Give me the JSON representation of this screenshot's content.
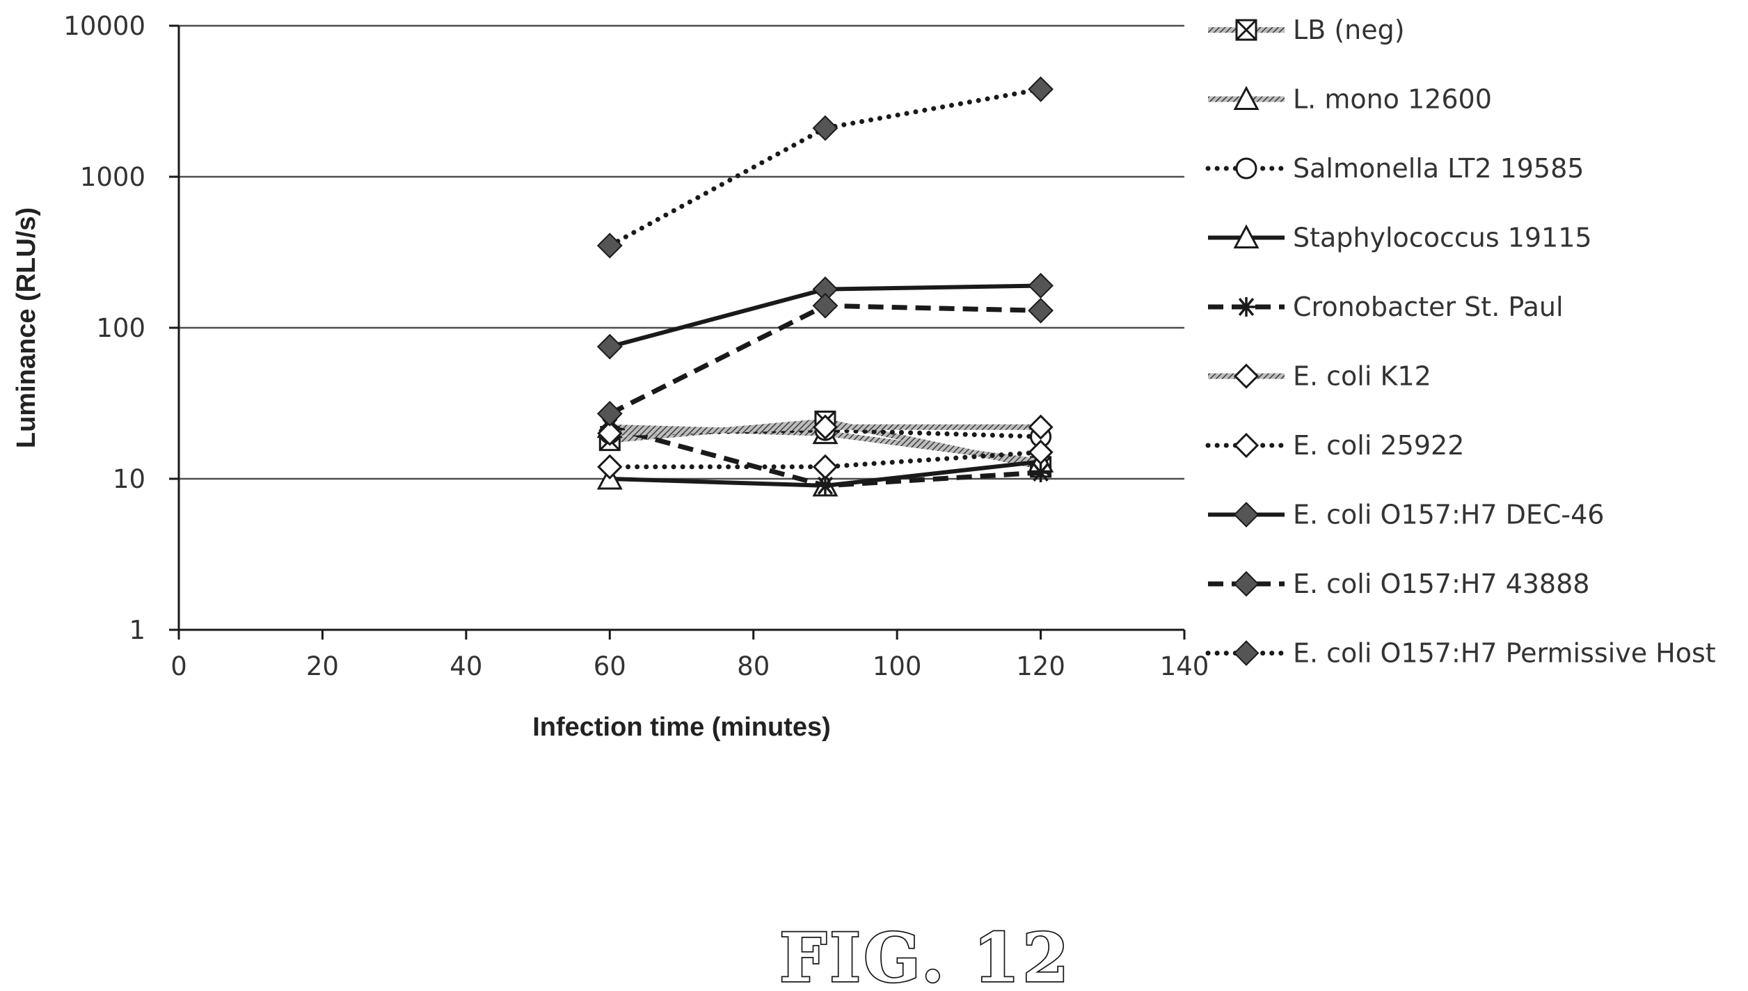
{
  "figure_label": "FIG. 12",
  "colors": {
    "ink": "#1a1a1a",
    "grid": "#4d4d4d",
    "hatch": "#777777"
  },
  "chart_data": {
    "type": "line",
    "title": "",
    "xlabel": "Infection time (minutes)",
    "ylabel": "Luminance (RLU/s)",
    "yscale": "log",
    "xlim": [
      0,
      140
    ],
    "ylim": [
      1,
      10000
    ],
    "x_ticks": [
      0,
      20,
      40,
      60,
      80,
      100,
      120,
      140
    ],
    "y_ticks": [
      1,
      10,
      100,
      1000,
      10000
    ],
    "grid": "horizontal",
    "legend_position": "right",
    "x": [
      60,
      90,
      120
    ],
    "series": [
      {
        "name": "LB (neg)",
        "values": [
          18,
          24,
          12
        ],
        "marker": "boxed-x",
        "line": "solid-hatched"
      },
      {
        "name": "L. mono 12600",
        "values": [
          22,
          20,
          13
        ],
        "marker": "triangle",
        "line": "solid-hatched"
      },
      {
        "name": "Salmonella LT2 19585",
        "values": [
          20,
          21,
          19
        ],
        "marker": "circle",
        "line": "dotted"
      },
      {
        "name": "Staphylococcus 19115",
        "values": [
          10,
          9,
          13
        ],
        "marker": "triangle",
        "line": "solid"
      },
      {
        "name": "Cronobacter St. Paul",
        "values": [
          22,
          9,
          11
        ],
        "marker": "asterisk",
        "line": "dashed"
      },
      {
        "name": "E. coli K12",
        "values": [
          20,
          22,
          22
        ],
        "marker": "diamond-open",
        "line": "solid-hatched"
      },
      {
        "name": "E. coli 25922",
        "values": [
          12,
          12,
          15
        ],
        "marker": "diamond-open",
        "line": "dotted"
      },
      {
        "name": "E. coli O157:H7 DEC-46",
        "values": [
          75,
          180,
          190
        ],
        "marker": "diamond-filled",
        "line": "solid"
      },
      {
        "name": "E. coli O157:H7 43888",
        "values": [
          27,
          140,
          130
        ],
        "marker": "diamond-filled",
        "line": "dashed"
      },
      {
        "name": "E. coli O157:H7 Permissive Host",
        "values": [
          350,
          2100,
          3800
        ],
        "marker": "diamond-filled",
        "line": "dotted"
      }
    ]
  }
}
